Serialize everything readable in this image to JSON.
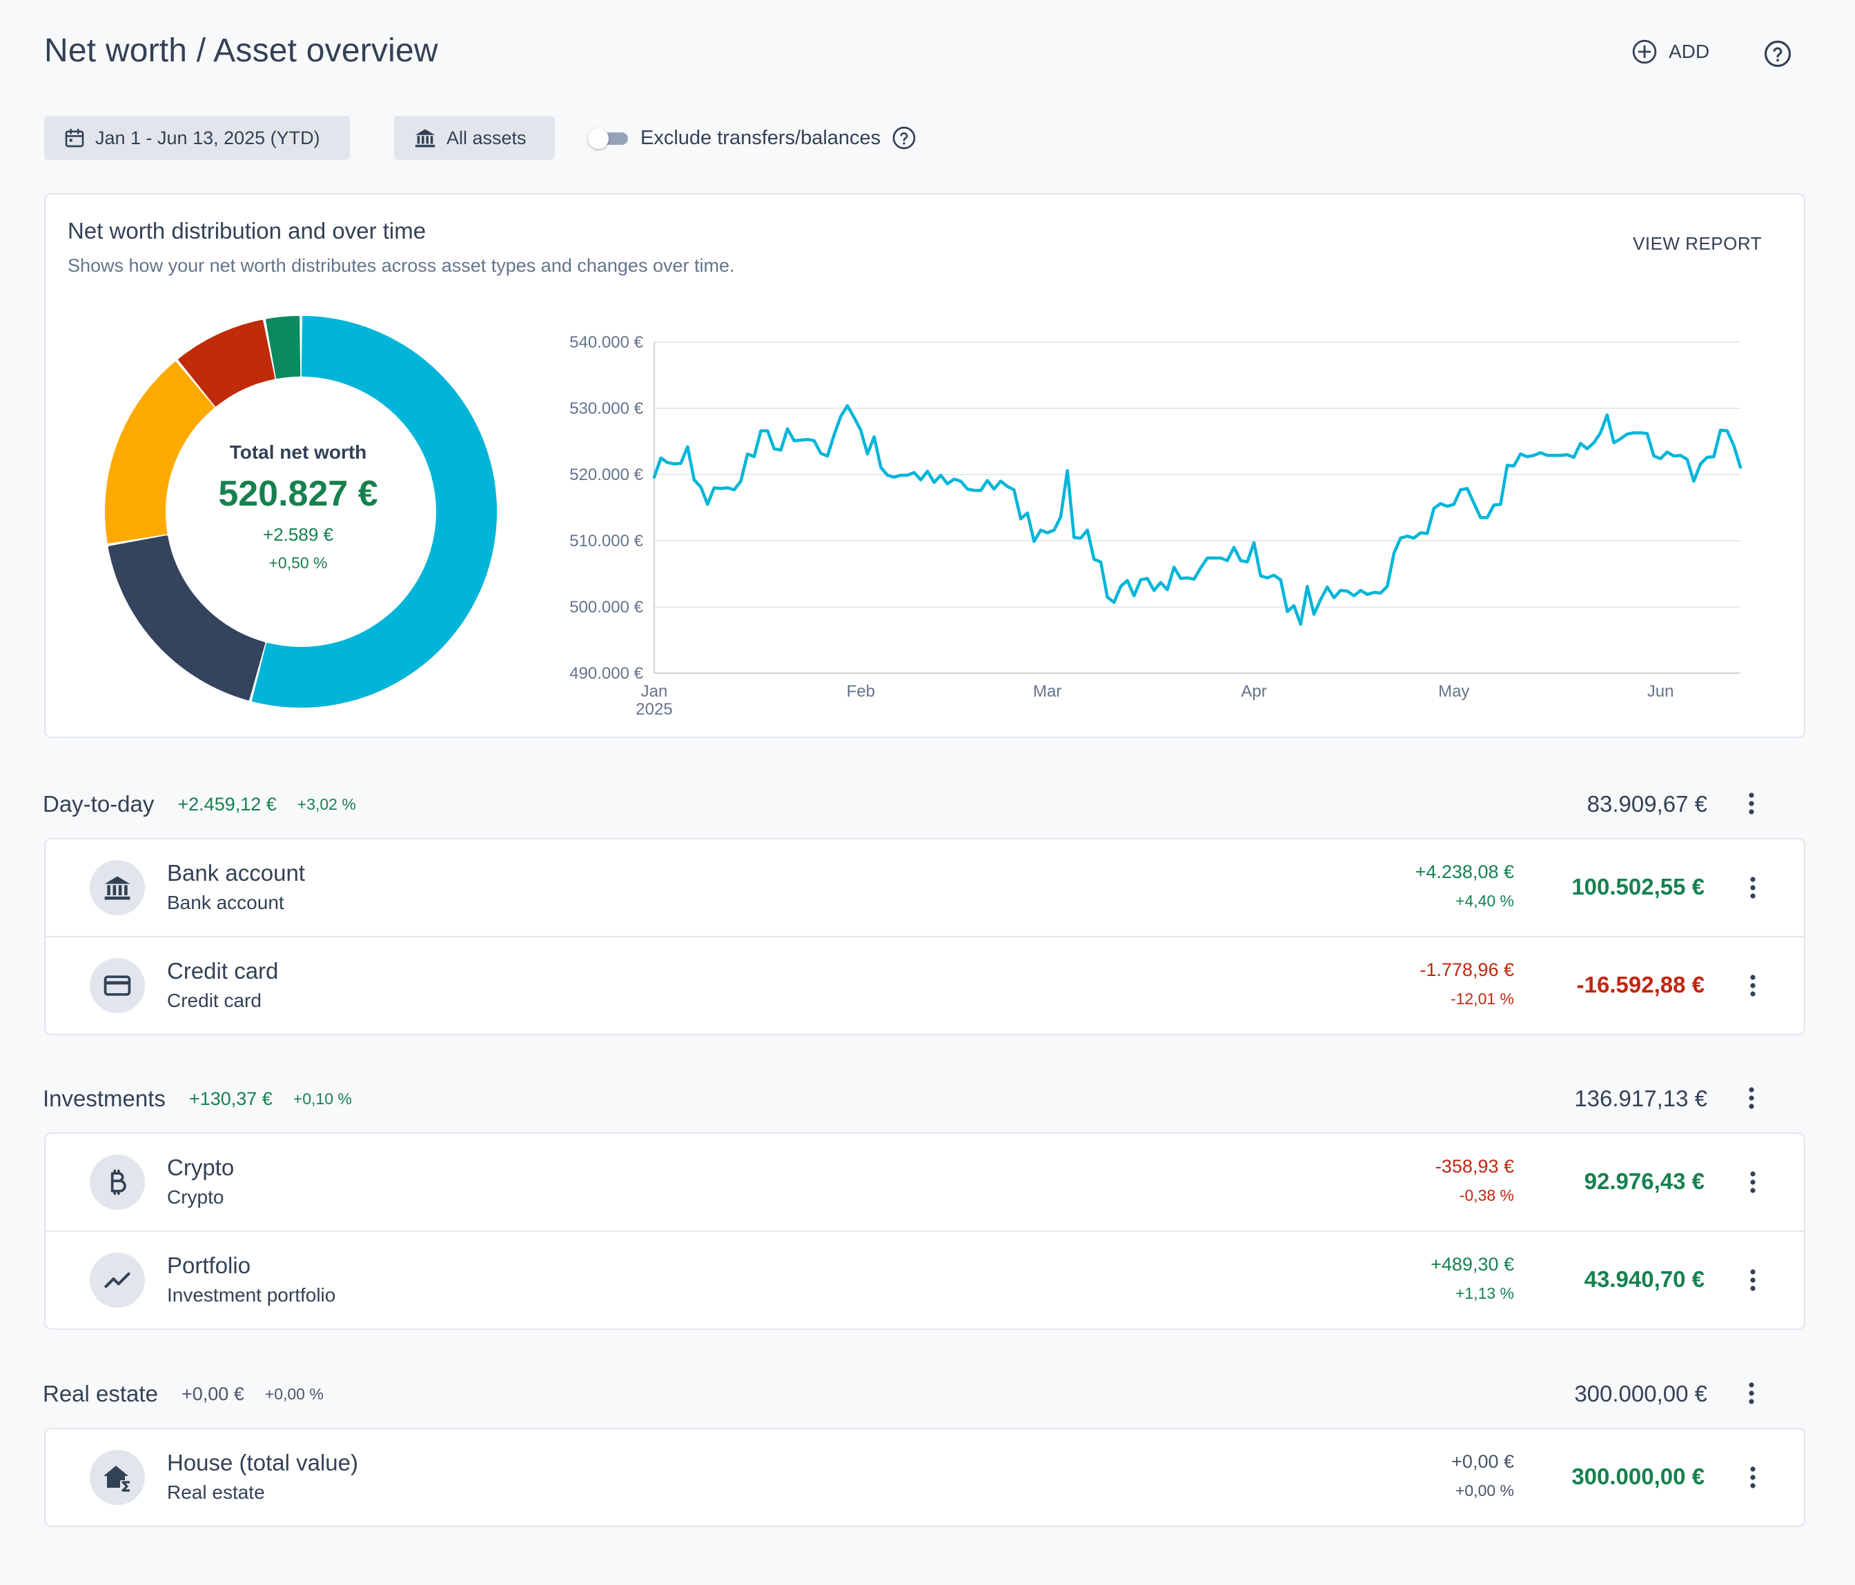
{
  "header": {
    "title": "Net worth / Asset overview",
    "add_label": "ADD"
  },
  "filters": {
    "date_range": "Jan 1 - Jun 13, 2025 (YTD)",
    "assets": "All assets",
    "exclude_toggle_label": "Exclude transfers/balances",
    "exclude_toggle_on": false
  },
  "overview": {
    "title": "Net worth distribution and over time",
    "subtitle": "Shows how your net worth distributes across asset types and changes over time.",
    "view_report": "VIEW REPORT",
    "total_label": "Total net worth",
    "total_value": "520.827 €",
    "total_change": "+2.589 €",
    "total_change_pct": "+0,50 %"
  },
  "chart_data": [
    {
      "type": "pie",
      "style": "donut",
      "slices": [
        {
          "value": 300000.0,
          "color": "#00b5d8"
        },
        {
          "value": 100502.55,
          "color": "#34435e"
        },
        {
          "value": 92976.43,
          "color": "#ffaa00"
        },
        {
          "value": 43940.7,
          "color": "#c02b0a"
        },
        {
          "value": 16592.88,
          "color": "#0a8a5e"
        }
      ]
    },
    {
      "type": "line",
      "yticks": [
        "540.000 €",
        "530.000 €",
        "520.000 €",
        "510.000 €",
        "500.000 €",
        "490.000 €"
      ],
      "xticks": [
        {
          "label": "Jan",
          "sub": "2025",
          "x": "2025-01-01"
        },
        {
          "label": "Feb",
          "sub": "",
          "x": "2025-02-01"
        },
        {
          "label": "Mar",
          "sub": "",
          "x": "2025-03-01"
        },
        {
          "label": "Apr",
          "sub": "",
          "x": "2025-04-01"
        },
        {
          "label": "May",
          "sub": "",
          "x": "2025-05-01"
        },
        {
          "label": "Jun",
          "sub": "",
          "x": "2025-06-01"
        }
      ],
      "ylim": [
        490000,
        540000
      ],
      "xlim": [
        "2025-01-01",
        "2025-06-13"
      ],
      "grid": true,
      "series": [
        {
          "color": "#00b5d8",
          "points": [
            [
              "2025-01-01",
              519600
            ],
            [
              "2025-01-02",
              522500
            ],
            [
              "2025-01-03",
              521800
            ],
            [
              "2025-01-04",
              521600
            ],
            [
              "2025-01-05",
              521700
            ],
            [
              "2025-01-06",
              524200
            ],
            [
              "2025-01-07",
              519200
            ],
            [
              "2025-01-08",
              518100
            ],
            [
              "2025-01-09",
              515500
            ],
            [
              "2025-01-10",
              518000
            ],
            [
              "2025-01-11",
              517900
            ],
            [
              "2025-01-12",
              518000
            ],
            [
              "2025-01-13",
              517700
            ],
            [
              "2025-01-14",
              519000
            ],
            [
              "2025-01-15",
              523100
            ],
            [
              "2025-01-16",
              522700
            ],
            [
              "2025-01-17",
              526600
            ],
            [
              "2025-01-18",
              526600
            ],
            [
              "2025-01-19",
              523900
            ],
            [
              "2025-01-20",
              523700
            ],
            [
              "2025-01-21",
              526900
            ],
            [
              "2025-01-22",
              525100
            ],
            [
              "2025-01-23",
              525200
            ],
            [
              "2025-01-24",
              525300
            ],
            [
              "2025-01-25",
              525100
            ],
            [
              "2025-01-26",
              523200
            ],
            [
              "2025-01-27",
              522800
            ],
            [
              "2025-01-28",
              526000
            ],
            [
              "2025-01-29",
              528800
            ],
            [
              "2025-01-30",
              530400
            ],
            [
              "2025-01-31",
              528600
            ],
            [
              "2025-02-01",
              526700
            ],
            [
              "2025-02-02",
              523100
            ],
            [
              "2025-02-03",
              525700
            ],
            [
              "2025-02-04",
              521100
            ],
            [
              "2025-02-05",
              519900
            ],
            [
              "2025-02-06",
              519600
            ],
            [
              "2025-02-07",
              519900
            ],
            [
              "2025-02-08",
              519900
            ],
            [
              "2025-02-09",
              520300
            ],
            [
              "2025-02-10",
              519200
            ],
            [
              "2025-02-11",
              520500
            ],
            [
              "2025-02-12",
              518800
            ],
            [
              "2025-02-13",
              519900
            ],
            [
              "2025-02-14",
              518600
            ],
            [
              "2025-02-15",
              519300
            ],
            [
              "2025-02-16",
              519000
            ],
            [
              "2025-02-17",
              517800
            ],
            [
              "2025-02-18",
              517600
            ],
            [
              "2025-02-19",
              517600
            ],
            [
              "2025-02-20",
              519100
            ],
            [
              "2025-02-21",
              517800
            ],
            [
              "2025-02-22",
              519000
            ],
            [
              "2025-02-23",
              518200
            ],
            [
              "2025-02-24",
              517700
            ],
            [
              "2025-02-25",
              513300
            ],
            [
              "2025-02-26",
              514200
            ],
            [
              "2025-02-27",
              509900
            ],
            [
              "2025-02-28",
              511600
            ],
            [
              "2025-03-01",
              511200
            ],
            [
              "2025-03-02",
              511600
            ],
            [
              "2025-03-03",
              513600
            ],
            [
              "2025-03-04",
              520600
            ],
            [
              "2025-03-05",
              510500
            ],
            [
              "2025-03-06",
              510400
            ],
            [
              "2025-03-07",
              511600
            ],
            [
              "2025-03-08",
              507200
            ],
            [
              "2025-03-09",
              506800
            ],
            [
              "2025-03-10",
              501500
            ],
            [
              "2025-03-11",
              500700
            ],
            [
              "2025-03-12",
              503100
            ],
            [
              "2025-03-13",
              504000
            ],
            [
              "2025-03-14",
              501700
            ],
            [
              "2025-03-15",
              504100
            ],
            [
              "2025-03-16",
              504300
            ],
            [
              "2025-03-17",
              502500
            ],
            [
              "2025-03-18",
              503700
            ],
            [
              "2025-03-19",
              502600
            ],
            [
              "2025-03-20",
              506000
            ],
            [
              "2025-03-21",
              504300
            ],
            [
              "2025-03-22",
              504400
            ],
            [
              "2025-03-23",
              504200
            ],
            [
              "2025-03-24",
              505900
            ],
            [
              "2025-03-25",
              507400
            ],
            [
              "2025-03-26",
              507400
            ],
            [
              "2025-03-27",
              507400
            ],
            [
              "2025-03-28",
              507000
            ],
            [
              "2025-03-29",
              509000
            ],
            [
              "2025-03-30",
              507000
            ],
            [
              "2025-03-31",
              506800
            ],
            [
              "2025-04-01",
              509700
            ],
            [
              "2025-04-02",
              504700
            ],
            [
              "2025-04-03",
              504400
            ],
            [
              "2025-04-04",
              504800
            ],
            [
              "2025-04-05",
              504100
            ],
            [
              "2025-04-06",
              499300
            ],
            [
              "2025-04-07",
              500200
            ],
            [
              "2025-04-08",
              497400
            ],
            [
              "2025-04-09",
              503100
            ],
            [
              "2025-04-10",
              498900
            ],
            [
              "2025-04-11",
              501100
            ],
            [
              "2025-04-12",
              503000
            ],
            [
              "2025-04-13",
              501400
            ],
            [
              "2025-04-14",
              502500
            ],
            [
              "2025-04-15",
              502400
            ],
            [
              "2025-04-16",
              501700
            ],
            [
              "2025-04-17",
              502500
            ],
            [
              "2025-04-18",
              501900
            ],
            [
              "2025-04-19",
              502200
            ],
            [
              "2025-04-20",
              502100
            ],
            [
              "2025-04-21",
              503100
            ],
            [
              "2025-04-22",
              508100
            ],
            [
              "2025-04-23",
              510400
            ],
            [
              "2025-04-24",
              510700
            ],
            [
              "2025-04-25",
              510400
            ],
            [
              "2025-04-26",
              511200
            ],
            [
              "2025-04-27",
              511100
            ],
            [
              "2025-04-28",
              514900
            ],
            [
              "2025-04-29",
              515600
            ],
            [
              "2025-04-30",
              515200
            ],
            [
              "2025-05-01",
              515500
            ],
            [
              "2025-05-02",
              517700
            ],
            [
              "2025-05-03",
              517900
            ],
            [
              "2025-05-04",
              515700
            ],
            [
              "2025-05-05",
              513500
            ],
            [
              "2025-05-06",
              513500
            ],
            [
              "2025-05-07",
              515400
            ],
            [
              "2025-05-08",
              515500
            ],
            [
              "2025-05-09",
              521400
            ],
            [
              "2025-05-10",
              521300
            ],
            [
              "2025-05-11",
              523100
            ],
            [
              "2025-05-12",
              522700
            ],
            [
              "2025-05-13",
              522900
            ],
            [
              "2025-05-14",
              523300
            ],
            [
              "2025-05-15",
              522900
            ],
            [
              "2025-05-16",
              522900
            ],
            [
              "2025-05-17",
              522900
            ],
            [
              "2025-05-18",
              523000
            ],
            [
              "2025-05-19",
              522600
            ],
            [
              "2025-05-20",
              524700
            ],
            [
              "2025-05-21",
              523900
            ],
            [
              "2025-05-22",
              524800
            ],
            [
              "2025-05-23",
              526300
            ],
            [
              "2025-05-24",
              529000
            ],
            [
              "2025-05-25",
              524800
            ],
            [
              "2025-05-26",
              525400
            ],
            [
              "2025-05-27",
              526100
            ],
            [
              "2025-05-28",
              526300
            ],
            [
              "2025-05-29",
              526300
            ],
            [
              "2025-05-30",
              526200
            ],
            [
              "2025-05-31",
              522800
            ],
            [
              "2025-06-01",
              522400
            ],
            [
              "2025-06-02",
              523400
            ],
            [
              "2025-06-03",
              522800
            ],
            [
              "2025-06-04",
              522900
            ],
            [
              "2025-06-05",
              522300
            ],
            [
              "2025-06-06",
              519000
            ],
            [
              "2025-06-07",
              521600
            ],
            [
              "2025-06-08",
              522600
            ],
            [
              "2025-06-09",
              522700
            ],
            [
              "2025-06-10",
              526700
            ],
            [
              "2025-06-11",
              526600
            ],
            [
              "2025-06-12",
              524400
            ],
            [
              "2025-06-13",
              521100
            ]
          ]
        }
      ]
    }
  ],
  "sections": [
    {
      "name": "Day-to-day",
      "change": "+2.459,12 €",
      "change_pct": "+3,02 %",
      "total": "83.909,67 €",
      "items": [
        {
          "name": "Bank account",
          "type": "Bank account",
          "change": "+4.238,08 €",
          "change_pct": "+4,40 %",
          "value": "100.502,55 €",
          "icon": "bank-icon"
        },
        {
          "name": "Credit card",
          "type": "Credit card",
          "change": "-1.778,96 €",
          "change_pct": "-12,01 %",
          "value": "-16.592,88 €",
          "icon": "credit-card-icon"
        }
      ]
    },
    {
      "name": "Investments",
      "change": "+130,37 €",
      "change_pct": "+0,10 %",
      "total": "136.917,13 €",
      "items": [
        {
          "name": "Crypto",
          "type": "Crypto",
          "change": "-358,93 €",
          "change_pct": "-0,38 %",
          "value": "92.976,43 €",
          "icon": "bitcoin-icon"
        },
        {
          "name": "Portfolio",
          "type": "Investment portfolio",
          "change": "+489,30 €",
          "change_pct": "+1,13 %",
          "value": "43.940,70 €",
          "icon": "trending-up-icon"
        }
      ]
    },
    {
      "name": "Real estate",
      "change": "+0,00 €",
      "change_pct": "+0,00 %",
      "total": "300.000,00 €",
      "items": [
        {
          "name": "House (total value)",
          "type": "Real estate",
          "change": "+0,00 €",
          "change_pct": "+0,00 %",
          "value": "300.000,00 €",
          "icon": "house-sum-icon"
        }
      ]
    }
  ]
}
